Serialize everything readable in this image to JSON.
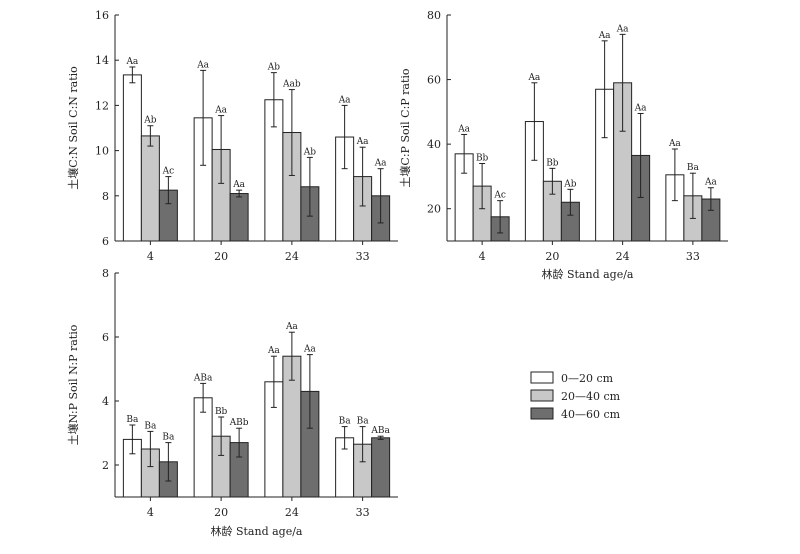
{
  "colors": {
    "s0": "#ffffff",
    "s1": "#c8c8c8",
    "s2": "#6e6e6e",
    "stroke": "#222222"
  },
  "legend": [
    {
      "label": "0—20 cm",
      "key": "s0"
    },
    {
      "label": "20—40 cm",
      "key": "s1"
    },
    {
      "label": "40—60 cm",
      "key": "s2"
    }
  ],
  "chart_data": [
    {
      "type": "bar",
      "ylabel": "土壤C:N Soil C:N ratio",
      "xlabel": "",
      "categories": [
        "4",
        "20",
        "24",
        "33"
      ],
      "ylim": [
        6,
        16
      ],
      "yticks": [
        6,
        8,
        10,
        12,
        14,
        16
      ],
      "series": [
        {
          "name": "0—20 cm",
          "values": [
            13.35,
            11.45,
            12.25,
            10.6
          ],
          "err": [
            0.35,
            2.1,
            1.2,
            1.4
          ],
          "labels": [
            "Aa",
            "Aa",
            "Ab",
            "Aa"
          ]
        },
        {
          "name": "20—40 cm",
          "values": [
            10.65,
            10.05,
            10.8,
            8.85
          ],
          "err": [
            0.45,
            1.5,
            1.9,
            1.3
          ],
          "labels": [
            "Ab",
            "Aa",
            "Aab",
            "Aa"
          ]
        },
        {
          "name": "40—60 cm",
          "values": [
            8.25,
            8.1,
            8.4,
            8.0
          ],
          "err": [
            0.6,
            0.15,
            1.3,
            1.2
          ],
          "labels": [
            "Ac",
            "Aa",
            "Ab",
            "Aa"
          ]
        }
      ]
    },
    {
      "type": "bar",
      "ylabel": "土壤C:P Soil C:P ratio",
      "xlabel": "林龄 Stand age/a",
      "categories": [
        "4",
        "20",
        "24",
        "33"
      ],
      "ylim": [
        10,
        80
      ],
      "yticks": [
        20,
        40,
        60,
        80
      ],
      "series": [
        {
          "name": "0—20 cm",
          "values": [
            37,
            47,
            57,
            30.5
          ],
          "err": [
            6,
            12,
            15,
            8
          ],
          "labels": [
            "Aa",
            "Aa",
            "Aa",
            "Aa"
          ]
        },
        {
          "name": "20—40 cm",
          "values": [
            27,
            28.5,
            59,
            24
          ],
          "err": [
            7,
            4,
            15,
            7
          ],
          "labels": [
            "Bb",
            "Bb",
            "Aa",
            "Ba"
          ]
        },
        {
          "name": "40—60 cm",
          "values": [
            17.5,
            22,
            36.5,
            23
          ],
          "err": [
            5,
            4,
            13,
            3.5
          ],
          "labels": [
            "Ac",
            "Ab",
            "Aa",
            "Aa"
          ]
        }
      ]
    },
    {
      "type": "bar",
      "ylabel": "土壤N:P Soil N:P ratio",
      "xlabel": "林龄 Stand age/a",
      "categories": [
        "4",
        "20",
        "24",
        "33"
      ],
      "ylim": [
        1,
        8
      ],
      "yticks": [
        2,
        4,
        6,
        8
      ],
      "series": [
        {
          "name": "0—20 cm",
          "values": [
            2.8,
            4.1,
            4.6,
            2.85
          ],
          "err": [
            0.45,
            0.45,
            0.8,
            0.35
          ],
          "labels": [
            "Ba",
            "ABa",
            "Aa",
            "Ba"
          ]
        },
        {
          "name": "20—40 cm",
          "values": [
            2.5,
            2.9,
            5.4,
            2.65
          ],
          "err": [
            0.55,
            0.6,
            0.75,
            0.55
          ],
          "labels": [
            "Ba",
            "Bb",
            "Aa",
            "Ba"
          ]
        },
        {
          "name": "40—60 cm",
          "values": [
            2.1,
            2.7,
            4.3,
            2.85
          ],
          "err": [
            0.6,
            0.45,
            1.15,
            0.05
          ],
          "labels": [
            "Ba",
            "ABb",
            "Aa",
            "ABa"
          ]
        }
      ]
    }
  ]
}
